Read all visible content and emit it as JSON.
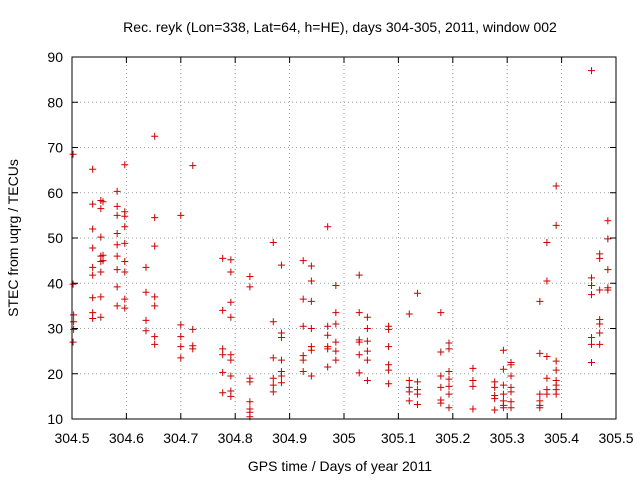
{
  "chart_data": {
    "type": "scatter",
    "title": "Rec. reyk (Lon=338, Lat=64, h=HE), days 304-305, 2011, window 002",
    "xlabel": "GPS time / Days of year 2011",
    "ylabel": "STEC from uqrg / TECUs",
    "xlim": [
      304.5,
      305.5
    ],
    "ylim": [
      10,
      90
    ],
    "xticks": [
      "304.5",
      "304.6",
      "304.7",
      "304.8",
      "304.9",
      "305",
      "305.1",
      "305.2",
      "305.3",
      "305.4",
      "305.5"
    ],
    "yticks": [
      "10",
      "20",
      "30",
      "40",
      "50",
      "60",
      "70",
      "80",
      "90"
    ],
    "grid": true,
    "marker": "+",
    "color": "#cc0000",
    "points": [
      [
        304.502,
        68.5
      ],
      [
        304.502,
        39.8
      ],
      [
        304.503,
        33.0
      ],
      [
        304.503,
        31.5
      ],
      [
        304.503,
        29.8
      ],
      [
        304.502,
        27.0
      ],
      [
        304.538,
        65.2
      ],
      [
        304.538,
        57.5
      ],
      [
        304.538,
        52.0
      ],
      [
        304.538,
        47.8
      ],
      [
        304.538,
        43.5
      ],
      [
        304.538,
        41.8
      ],
      [
        304.538,
        36.8
      ],
      [
        304.538,
        33.5
      ],
      [
        304.538,
        32.2
      ],
      [
        304.553,
        58.3
      ],
      [
        304.553,
        56.5
      ],
      [
        304.553,
        50.2
      ],
      [
        304.553,
        46.0
      ],
      [
        304.553,
        44.8
      ],
      [
        304.553,
        42.5
      ],
      [
        304.553,
        37.0
      ],
      [
        304.553,
        32.5
      ],
      [
        304.557,
        58.0
      ],
      [
        304.557,
        46.2
      ],
      [
        304.557,
        45.0
      ],
      [
        304.583,
        60.3
      ],
      [
        304.583,
        57.0
      ],
      [
        304.583,
        55.0
      ],
      [
        304.583,
        51.0
      ],
      [
        304.583,
        48.5
      ],
      [
        304.583,
        46.0
      ],
      [
        304.583,
        43.0
      ],
      [
        304.583,
        39.2
      ],
      [
        304.583,
        35.0
      ],
      [
        304.597,
        66.2
      ],
      [
        304.597,
        55.8
      ],
      [
        304.597,
        54.8
      ],
      [
        304.597,
        52.5
      ],
      [
        304.597,
        48.8
      ],
      [
        304.597,
        44.8
      ],
      [
        304.597,
        42.5
      ],
      [
        304.597,
        36.5
      ],
      [
        304.597,
        34.5
      ],
      [
        304.636,
        43.5
      ],
      [
        304.636,
        38.0
      ],
      [
        304.636,
        31.8
      ],
      [
        304.636,
        29.5
      ],
      [
        304.652,
        72.5
      ],
      [
        304.652,
        54.5
      ],
      [
        304.652,
        48.2
      ],
      [
        304.652,
        37.0
      ],
      [
        304.652,
        35.0
      ],
      [
        304.652,
        28.2
      ],
      [
        304.652,
        26.5
      ],
      [
        304.7,
        55.0
      ],
      [
        304.7,
        30.8
      ],
      [
        304.7,
        28.2
      ],
      [
        304.7,
        26.0
      ],
      [
        304.7,
        23.5
      ],
      [
        304.722,
        66.0
      ],
      [
        304.722,
        29.8
      ],
      [
        304.722,
        26.2
      ],
      [
        304.722,
        25.5
      ],
      [
        304.777,
        45.5
      ],
      [
        304.777,
        34.0
      ],
      [
        304.777,
        25.5
      ],
      [
        304.777,
        24.2
      ],
      [
        304.777,
        20.3
      ],
      [
        304.777,
        15.8
      ],
      [
        304.792,
        45.2
      ],
      [
        304.792,
        42.5
      ],
      [
        304.792,
        35.8
      ],
      [
        304.792,
        32.5
      ],
      [
        304.792,
        24.2
      ],
      [
        304.792,
        23.0
      ],
      [
        304.792,
        19.5
      ],
      [
        304.792,
        16.2
      ],
      [
        304.792,
        15.0
      ],
      [
        304.827,
        41.5
      ],
      [
        304.827,
        39.2
      ],
      [
        304.827,
        19.0
      ],
      [
        304.827,
        18.2
      ],
      [
        304.827,
        13.8
      ],
      [
        304.827,
        12.2
      ],
      [
        304.827,
        11.5
      ],
      [
        304.827,
        10.5
      ],
      [
        304.87,
        49.0
      ],
      [
        304.87,
        31.5
      ],
      [
        304.87,
        23.5
      ],
      [
        304.87,
        19.0
      ],
      [
        304.87,
        17.5
      ],
      [
        304.87,
        16.0
      ],
      [
        304.885,
        44.0
      ],
      [
        304.885,
        29.0
      ],
      [
        304.885,
        28.0
      ],
      [
        304.885,
        23.0
      ],
      [
        304.885,
        20.5
      ],
      [
        304.885,
        19.5
      ],
      [
        304.885,
        18.0
      ],
      [
        304.925,
        45.0
      ],
      [
        304.925,
        36.5
      ],
      [
        304.925,
        30.5
      ],
      [
        304.925,
        24.0
      ],
      [
        304.925,
        23.0
      ],
      [
        304.925,
        20.5
      ],
      [
        304.94,
        43.8
      ],
      [
        304.94,
        40.5
      ],
      [
        304.94,
        36.0
      ],
      [
        304.94,
        30.0
      ],
      [
        304.94,
        26.0
      ],
      [
        304.94,
        25.2
      ],
      [
        304.94,
        19.5
      ],
      [
        304.97,
        52.5
      ],
      [
        304.97,
        30.5
      ],
      [
        304.97,
        28.5
      ],
      [
        304.97,
        26.0
      ],
      [
        304.97,
        25.5
      ],
      [
        304.97,
        21.5
      ],
      [
        304.985,
        39.5
      ],
      [
        304.985,
        33.5
      ],
      [
        304.985,
        31.0
      ],
      [
        304.985,
        27.0
      ],
      [
        304.985,
        25.0
      ],
      [
        304.985,
        23.0
      ],
      [
        305.028,
        41.8
      ],
      [
        305.028,
        33.5
      ],
      [
        305.028,
        27.5
      ],
      [
        305.028,
        27.0
      ],
      [
        305.028,
        24.2
      ],
      [
        305.028,
        20.2
      ],
      [
        305.043,
        32.5
      ],
      [
        305.043,
        30.0
      ],
      [
        305.043,
        27.2
      ],
      [
        305.043,
        25.0
      ],
      [
        305.043,
        23.0
      ],
      [
        305.043,
        18.5
      ],
      [
        305.082,
        30.5
      ],
      [
        305.082,
        29.8
      ],
      [
        305.082,
        26.0
      ],
      [
        305.082,
        22.0
      ],
      [
        305.082,
        20.8
      ],
      [
        305.082,
        17.8
      ],
      [
        305.12,
        33.2
      ],
      [
        305.12,
        18.5
      ],
      [
        305.12,
        17.0
      ],
      [
        305.12,
        16.0
      ],
      [
        305.12,
        14.0
      ],
      [
        305.135,
        37.8
      ],
      [
        305.135,
        18.2
      ],
      [
        305.135,
        16.5
      ],
      [
        305.135,
        15.5
      ],
      [
        305.135,
        13.2
      ],
      [
        305.178,
        33.5
      ],
      [
        305.178,
        24.8
      ],
      [
        305.178,
        19.5
      ],
      [
        305.178,
        17.0
      ],
      [
        305.178,
        14.2
      ],
      [
        305.178,
        13.5
      ],
      [
        305.193,
        26.8
      ],
      [
        305.193,
        25.5
      ],
      [
        305.193,
        20.5
      ],
      [
        305.193,
        18.8
      ],
      [
        305.193,
        17.2
      ],
      [
        305.193,
        15.5
      ],
      [
        305.193,
        12.5
      ],
      [
        305.237,
        21.2
      ],
      [
        305.237,
        18.5
      ],
      [
        305.237,
        17.2
      ],
      [
        305.237,
        12.2
      ],
      [
        305.277,
        18.2
      ],
      [
        305.277,
        17.0
      ],
      [
        305.277,
        15.2
      ],
      [
        305.277,
        14.5
      ],
      [
        305.277,
        12.0
      ],
      [
        305.293,
        25.2
      ],
      [
        305.293,
        21.0
      ],
      [
        305.293,
        17.5
      ],
      [
        305.293,
        15.5
      ],
      [
        305.293,
        14.0
      ],
      [
        305.293,
        13.0
      ],
      [
        305.293,
        12.5
      ],
      [
        305.307,
        22.5
      ],
      [
        305.307,
        22.0
      ],
      [
        305.307,
        19.5
      ],
      [
        305.307,
        17.0
      ],
      [
        305.307,
        16.0
      ],
      [
        305.307,
        13.8
      ],
      [
        305.307,
        12.5
      ],
      [
        305.36,
        36.0
      ],
      [
        305.36,
        24.5
      ],
      [
        305.36,
        15.5
      ],
      [
        305.36,
        14.0
      ],
      [
        305.36,
        13.0
      ],
      [
        305.36,
        12.5
      ],
      [
        305.373,
        49.0
      ],
      [
        305.373,
        40.5
      ],
      [
        305.373,
        23.8
      ],
      [
        305.373,
        19.0
      ],
      [
        305.373,
        16.5
      ],
      [
        305.373,
        15.5
      ],
      [
        305.39,
        61.5
      ],
      [
        305.39,
        52.8
      ],
      [
        305.39,
        22.8
      ],
      [
        305.39,
        20.8
      ],
      [
        305.39,
        18.5
      ],
      [
        305.39,
        17.5
      ],
      [
        305.39,
        16.5
      ],
      [
        305.39,
        15.5
      ],
      [
        305.455,
        87.0
      ],
      [
        305.455,
        41.2
      ],
      [
        305.455,
        39.5
      ],
      [
        305.455,
        37.5
      ],
      [
        305.455,
        28.0
      ],
      [
        305.455,
        26.5
      ],
      [
        305.455,
        22.5
      ],
      [
        305.47,
        46.5
      ],
      [
        305.47,
        45.5
      ],
      [
        305.47,
        38.5
      ],
      [
        305.47,
        32.0
      ],
      [
        305.47,
        31.0
      ],
      [
        305.47,
        29.0
      ],
      [
        305.47,
        26.5
      ],
      [
        305.485,
        53.8
      ],
      [
        305.485,
        49.8
      ],
      [
        305.485,
        43.0
      ],
      [
        305.485,
        39.0
      ],
      [
        305.485,
        38.5
      ]
    ]
  }
}
